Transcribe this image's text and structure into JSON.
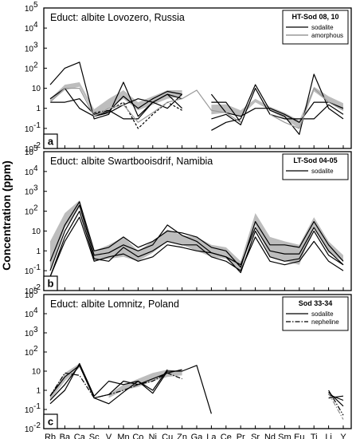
{
  "figure": {
    "ylabel": "Concentration (ppm)",
    "elements": [
      "Rb",
      "Ba",
      "Ca",
      "Sc",
      "V",
      "Mn",
      "Co",
      "Ni",
      "Cu",
      "Zn",
      "Ga",
      "La",
      "Ce",
      "Pr",
      "Sr",
      "Nd",
      "Sm",
      "Eu",
      "Ti",
      "Li",
      "Y"
    ],
    "ytick_exponents": [
      "-2",
      "-1",
      "0",
      "1",
      "2",
      "3",
      "4",
      "5"
    ],
    "ytick_base": "10",
    "ytick_plain": {
      "0": "1",
      "1": "10"
    }
  },
  "chart_data": [
    {
      "type": "line",
      "panel_label": "a",
      "title": "Educt: albite Lovozero, Russia",
      "legend": {
        "title": "HT-Sod 08, 10",
        "placement": "top-right",
        "items": [
          {
            "name": "sodalite",
            "style": "solid",
            "color": "#000000"
          },
          {
            "name": "amorphous",
            "style": "solid",
            "color": "#9a9a9a"
          }
        ]
      },
      "yscale": "log",
      "ylim": [
        0.01,
        100000
      ],
      "band": {
        "color": "#bdbdbd",
        "lower": [
          2,
          8,
          12,
          0.5,
          1,
          3,
          0.8,
          1.5,
          3,
          4,
          null,
          0.5,
          0.6,
          0.4,
          2,
          0.8,
          0.3,
          0.1,
          7,
          2,
          0.8
        ],
        "upper": [
          3,
          15,
          20,
          0.9,
          3,
          8,
          2,
          4,
          8,
          8,
          null,
          1.5,
          1.6,
          0.8,
          3,
          1.2,
          0.6,
          0.25,
          12,
          4,
          1.8
        ]
      },
      "series": [
        {
          "name": "sodalite",
          "color": "#000000",
          "dash": "",
          "values": [
            15,
            100,
            200,
            0.3,
            0.5,
            20,
            0.4,
            2,
            5,
            3,
            null,
            0.08,
            0.2,
            0.3,
            15,
            0.8,
            0.4,
            0.05,
            50,
            1,
            0.3
          ]
        },
        {
          "name": "sodalite",
          "color": "#000000",
          "dash": "",
          "values": [
            3,
            10,
            1,
            0.4,
            0.7,
            4,
            1,
            3,
            7,
            5,
            null,
            0.3,
            0.5,
            0.15,
            10,
            0.5,
            0.3,
            0.3,
            0.3,
            1.5,
            0.5
          ]
        },
        {
          "name": "sodalite",
          "color": "#000000",
          "dash": "",
          "values": [
            2,
            2,
            3,
            0.5,
            0.8,
            0.3,
            0.3,
            2,
            5,
            1,
            null,
            2,
            2,
            0.2,
            null,
            null,
            null,
            null,
            null,
            null,
            null
          ]
        },
        {
          "name": "sodalite",
          "color": "#000000",
          "dash": "",
          "values": [
            null,
            null,
            null,
            0.4,
            0.6,
            1.5,
            3,
            2,
            1,
            5,
            null,
            5,
            0.6,
            0.4,
            1,
            1,
            0.5,
            0.2,
            2,
            2,
            1
          ]
        },
        {
          "name": "sodalite",
          "color": "#000000",
          "dash": "3,2",
          "values": [
            null,
            null,
            null,
            0.6,
            0.8,
            2,
            0.1,
            0.5,
            2,
            0.8,
            null,
            null,
            null,
            null,
            null,
            null,
            null,
            null,
            null,
            null,
            null
          ]
        },
        {
          "name": "amorphous",
          "color": "#9a9a9a",
          "dash": "",
          "values": [
            2,
            10,
            10,
            0.4,
            1,
            1.5,
            0.2,
            0.6,
            2,
            3,
            8,
            0.8,
            0.6,
            0.2,
            null,
            0.5,
            0.2,
            0.1,
            10,
            2,
            0.8
          ]
        }
      ]
    },
    {
      "type": "line",
      "panel_label": "b",
      "title": "Educt: albite Swartbooisdrif, Namibia",
      "legend": {
        "title": "LT-Sod 04-05",
        "placement": "top-right",
        "items": [
          {
            "name": "sodalite",
            "style": "solid",
            "color": "#000000"
          }
        ]
      },
      "yscale": "log",
      "ylim": [
        0.01,
        100000
      ],
      "band": {
        "color": "#bdbdbd",
        "lower": [
          0.1,
          15,
          150,
          0.3,
          0.4,
          0.5,
          0.3,
          0.8,
          3,
          2,
          1,
          0.5,
          0.4,
          0.1,
          20,
          0.5,
          0.3,
          0.2,
          15,
          0.8,
          0.3
        ],
        "upper": [
          3,
          80,
          350,
          1,
          2,
          5,
          1,
          3,
          12,
          6,
          5,
          2,
          1.5,
          0.3,
          80,
          5,
          3,
          2,
          50,
          3,
          0.6
        ]
      },
      "series": [
        {
          "name": "sodalite",
          "color": "#000000",
          "dash": "",
          "values": [
            0.05,
            5,
            100,
            0.4,
            0.3,
            1.5,
            0.5,
            1,
            3,
            2,
            2,
            0.5,
            0.3,
            0.1,
            5,
            0.3,
            0.2,
            0.3,
            3,
            0.3,
            0.1
          ]
        },
        {
          "name": "sodalite",
          "color": "#000000",
          "dash": "",
          "values": [
            0.1,
            10,
            200,
            0.6,
            0.8,
            2,
            1,
            2,
            20,
            6,
            3,
            0.8,
            0.5,
            0.2,
            15,
            1,
            0.7,
            0.7,
            15,
            1,
            0.2
          ]
        },
        {
          "name": "sodalite",
          "color": "#000000",
          "dash": "",
          "values": [
            0.3,
            20,
            300,
            1,
            1.5,
            5,
            1.5,
            3,
            10,
            8,
            5,
            1.5,
            1,
            0.15,
            30,
            2,
            2,
            1.5,
            30,
            2,
            0.3
          ]
        },
        {
          "name": "sodalite",
          "color": "#000000",
          "dash": "",
          "values": [
            0.05,
            3,
            50,
            0.3,
            0.5,
            0.7,
            0.3,
            0.5,
            2,
            1.5,
            1,
            0.8,
            0.5,
            0.08,
            10,
            0.5,
            0.3,
            0.4,
            10,
            0.6,
            0.2
          ]
        }
      ]
    },
    {
      "type": "line",
      "panel_label": "c",
      "title": "Educt: albite Lomnitz, Poland",
      "legend": {
        "title": "Sod 33-34",
        "placement": "top-right",
        "items": [
          {
            "name": "sodalite",
            "style": "solid",
            "color": "#000000"
          },
          {
            "name": "nepheline",
            "style": "dashdot",
            "color": "#000000"
          }
        ]
      },
      "yscale": "log",
      "ylim": [
        0.01,
        100000
      ],
      "band": {
        "color": "#bdbdbd",
        "lower": [
          0.3,
          3,
          15,
          null,
          0.4,
          1,
          1.5,
          3,
          5,
          6,
          null,
          null,
          null,
          null,
          3,
          null,
          null,
          null,
          null,
          0.7,
          null
        ],
        "upper": [
          0.6,
          8,
          25,
          null,
          0.6,
          2,
          4,
          8,
          12,
          10,
          null,
          null,
          null,
          null,
          6,
          null,
          null,
          null,
          null,
          1,
          null
        ]
      },
      "series": [
        {
          "name": "sodalite",
          "color": "#000000",
          "dash": "",
          "values": [
            0.3,
            2,
            20,
            0.4,
            0.2,
            0.8,
            3,
            0.7,
            10,
            10,
            20,
            0.06,
            null,
            null,
            5,
            null,
            null,
            null,
            null,
            0.8,
            0.15
          ]
        },
        {
          "name": "sodalite",
          "color": "#000000",
          "dash": "",
          "values": [
            0.5,
            5,
            20,
            0.4,
            0.6,
            3,
            2,
            4,
            8,
            12,
            null,
            null,
            null,
            null,
            0.3,
            null,
            null,
            null,
            null,
            0.6,
            0.3
          ]
        },
        {
          "name": "sodalite",
          "color": "#000000",
          "dash": "",
          "values": [
            0.2,
            1,
            25,
            0.5,
            3,
            2,
            3,
            1,
            12,
            null,
            null,
            null,
            0.15,
            null,
            2.5,
            null,
            null,
            null,
            null,
            0.4,
            0.5
          ]
        },
        {
          "name": "nepheline",
          "color": "#000000",
          "dash": "6,2,1.5,2",
          "values": [
            0.5,
            8,
            6,
            0.4,
            0.6,
            1,
            2,
            3,
            8,
            4,
            null,
            null,
            null,
            null,
            20,
            null,
            null,
            null,
            null,
            1,
            0.05
          ]
        },
        {
          "name": "nepheline",
          "color": "#8a8a8a",
          "dash": "6,2,1.5,2",
          "values": [
            null,
            7,
            null,
            null,
            null,
            null,
            null,
            null,
            null,
            5,
            null,
            null,
            null,
            null,
            15,
            null,
            null,
            null,
            null,
            0.7,
            0.03
          ]
        }
      ]
    }
  ]
}
